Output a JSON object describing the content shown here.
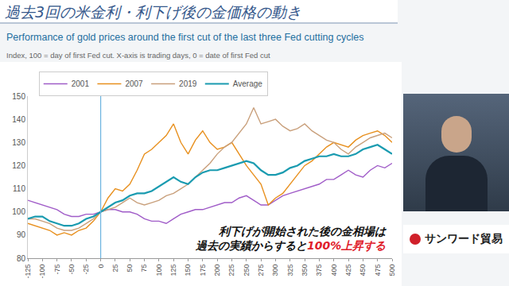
{
  "slide": {
    "heading": "過去3回の米金利・利下げ後の金価格の動き",
    "logo": "サンワード貿易"
  },
  "chart_data": {
    "type": "line",
    "title": "Performance of gold prices around the first cut of the last three Fed cutting cycles",
    "subtitle": "Index, 100 = day of first Fed cut. X-axis is trading days, 0 = date of first Fed cut",
    "x": [
      -125,
      -112.5,
      -100,
      -87.5,
      -75,
      -62.5,
      -50,
      -37.5,
      -25,
      -12.5,
      0,
      12.5,
      25,
      37.5,
      50,
      62.5,
      75,
      87.5,
      100,
      112.5,
      125,
      137.5,
      150,
      162.5,
      175,
      187.5,
      200,
      212.5,
      225,
      237.5,
      250,
      262.5,
      275,
      287.5,
      300,
      312.5,
      325,
      337.5,
      350,
      362.5,
      375,
      387.5,
      400,
      412.5,
      425,
      437.5,
      450,
      462.5,
      475,
      487.5,
      500
    ],
    "series": [
      {
        "name": "2001",
        "color": "#a05cc8",
        "values": [
          105,
          104,
          103,
          102,
          101,
          99,
          98,
          98,
          99,
          99,
          100,
          101,
          101,
          100,
          100,
          99,
          97,
          96,
          96,
          95,
          97,
          99,
          100,
          101,
          101,
          102,
          103,
          104,
          104,
          106,
          107,
          105,
          103,
          103,
          105,
          107,
          108,
          109,
          110,
          111,
          112,
          114,
          114,
          116,
          118,
          116,
          115,
          118,
          120,
          119,
          121
        ]
      },
      {
        "name": "2007",
        "color": "#e8901e",
        "values": [
          95,
          94,
          93,
          92,
          90,
          91,
          90,
          92,
          93,
          96,
          100,
          106,
          110,
          109,
          112,
          118,
          125,
          127,
          130,
          133,
          138,
          130,
          125,
          131,
          135,
          130,
          127,
          128,
          130,
          125,
          120,
          116,
          112,
          103,
          106,
          108,
          112,
          116,
          120,
          122,
          125,
          128,
          130,
          129,
          128,
          131,
          133,
          134,
          135,
          133,
          130
        ]
      },
      {
        "name": "2019",
        "color": "#c9a07c",
        "values": [
          97,
          97,
          96,
          95,
          93,
          92,
          92,
          93,
          95,
          97,
          100,
          101,
          102,
          104,
          106,
          104,
          103,
          104,
          105,
          107,
          108,
          110,
          112,
          115,
          118,
          121,
          125,
          128,
          130,
          134,
          138,
          145,
          138,
          139,
          140,
          137,
          135,
          136,
          138,
          135,
          133,
          131,
          130,
          127,
          125,
          128,
          130,
          132,
          133,
          134,
          132
        ]
      },
      {
        "name": "Average",
        "color": "#1a9bb0",
        "values": [
          97,
          98,
          98,
          96,
          95,
          94,
          94,
          95,
          97,
          98,
          100,
          102,
          104,
          105,
          107,
          108,
          108,
          109,
          111,
          113,
          115,
          113,
          112,
          115,
          117,
          118,
          118,
          119,
          120,
          121,
          122,
          121,
          118,
          116,
          116,
          117,
          119,
          120,
          122,
          123,
          124,
          124,
          125,
          124,
          124,
          125,
          127,
          128,
          129,
          127,
          125
        ]
      }
    ],
    "reference_x": 0,
    "xlim": [
      -125,
      500
    ],
    "xticks": [
      -125,
      -100,
      -75,
      -50,
      -25,
      0,
      25,
      50,
      75,
      100,
      125,
      150,
      175,
      200,
      225,
      250,
      275,
      300,
      325,
      350,
      375,
      400,
      425,
      450,
      475,
      500
    ],
    "ylim": [
      80,
      150
    ],
    "yticks": [
      80,
      90,
      100,
      110,
      120,
      130,
      140,
      150
    ],
    "grid": false,
    "legend": "top",
    "annotation": {
      "lines": [
        "利下げが開始された後の金相場は",
        "過去の実績からすると100%上昇する"
      ],
      "highlight": "100%上昇する"
    }
  }
}
